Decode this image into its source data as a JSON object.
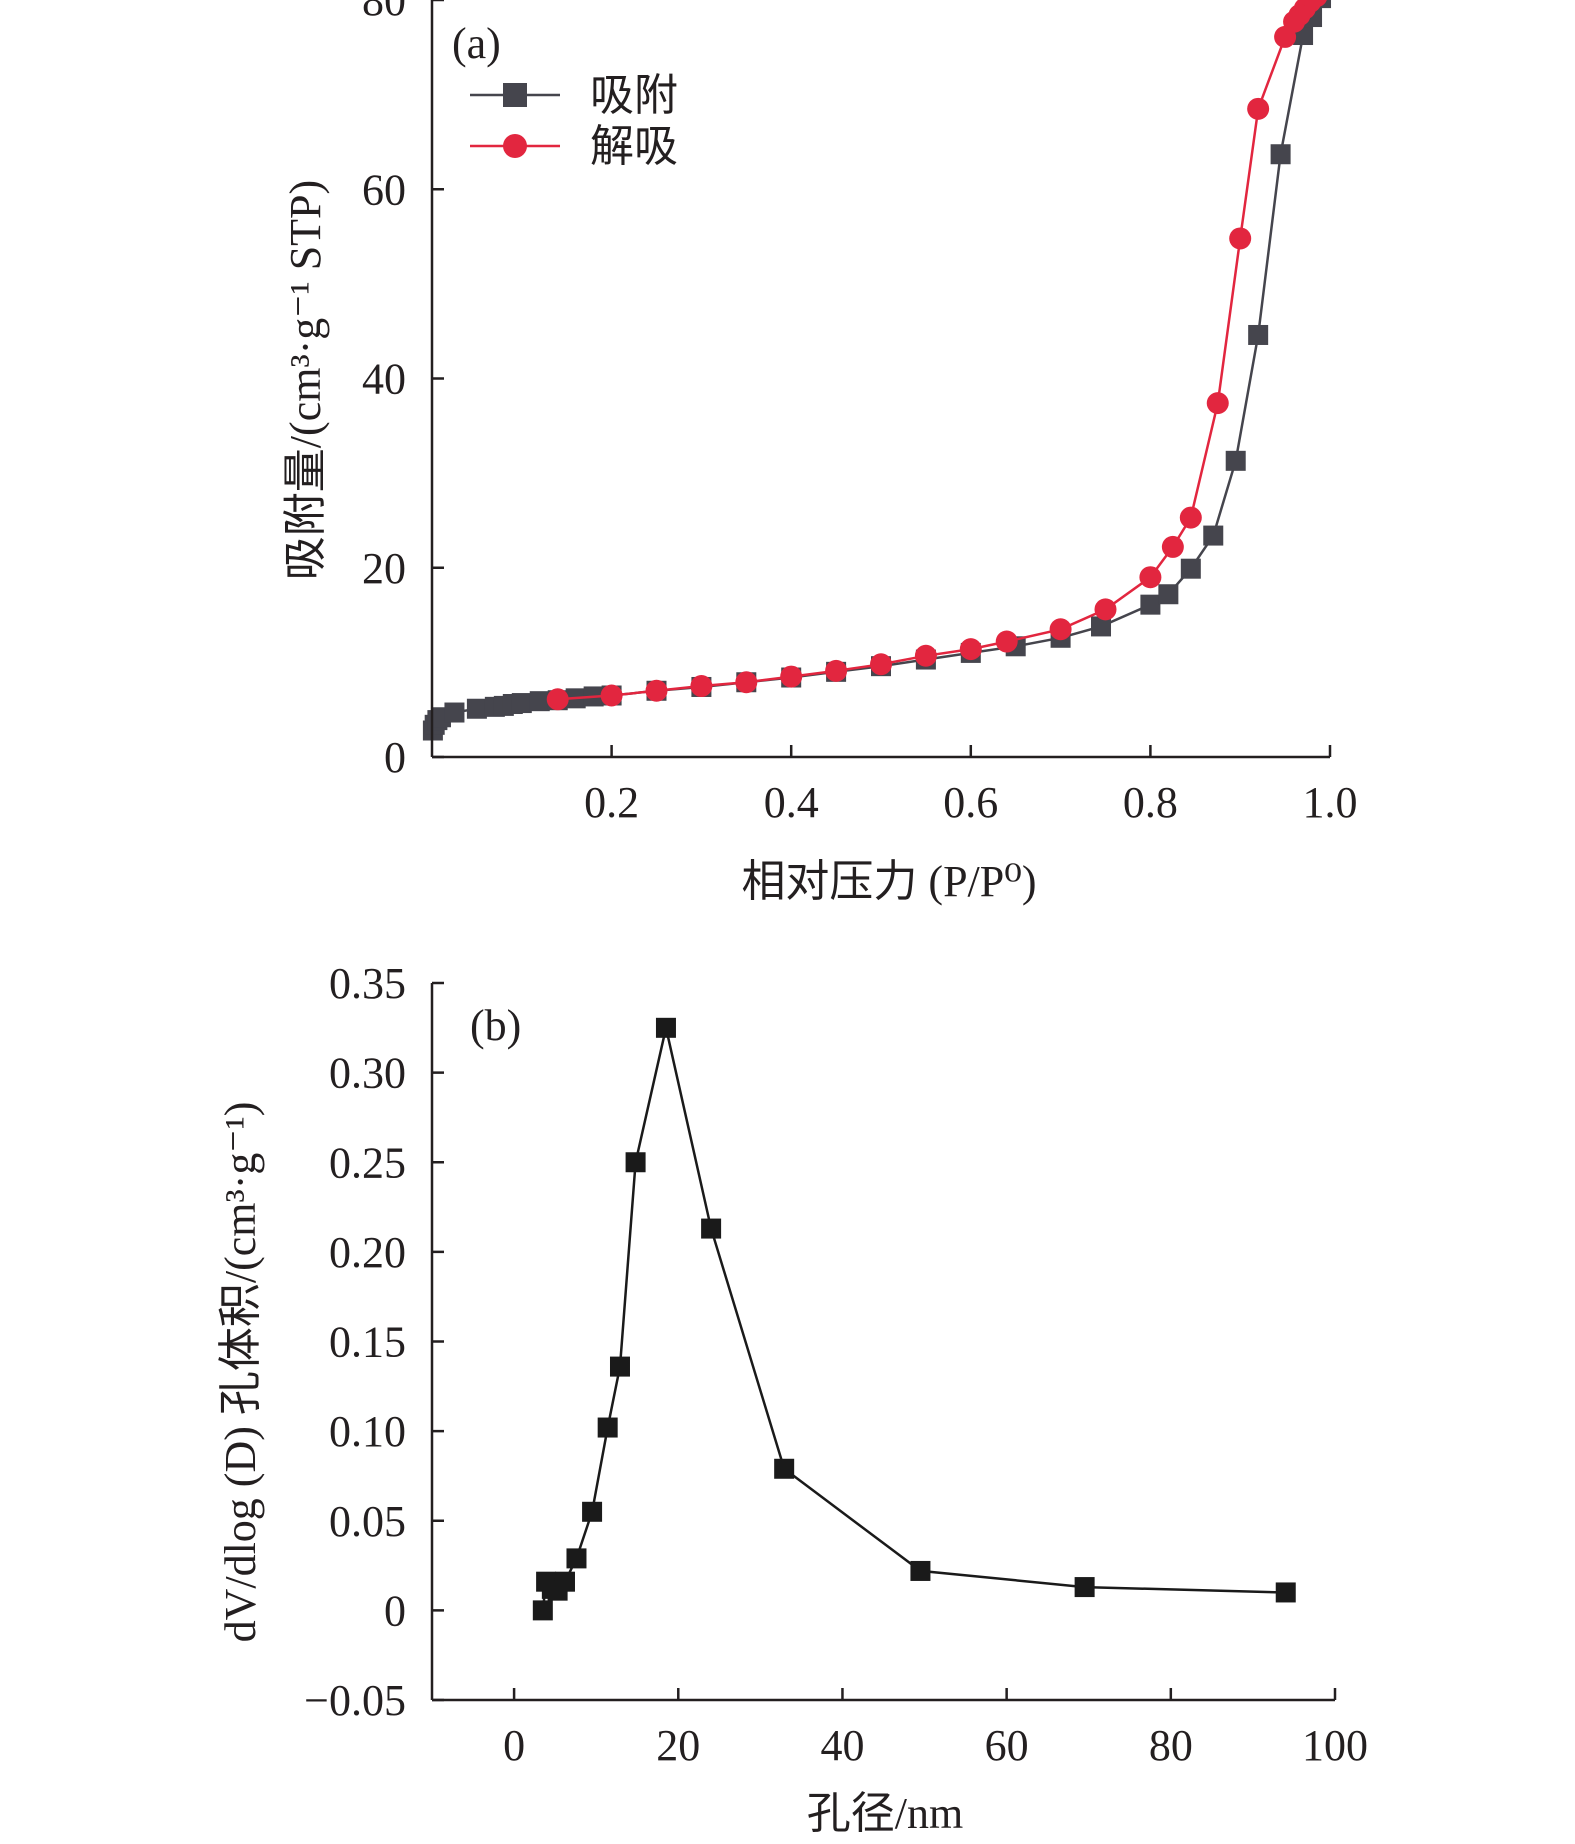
{
  "colors": {
    "adsorption": "#45454d",
    "desorption": "#e2263f",
    "psd": "#1a1a1a",
    "axis": "#231f20"
  },
  "chart_data": [
    {
      "type": "line",
      "panel_label": "(a)",
      "xlabel": "相对压力 (P/P⁰)",
      "ylabel": "吸附量/(cm³·g⁻¹ STP)",
      "xlim": [
        0,
        1.0
      ],
      "ylim": [
        0,
        80
      ],
      "xticks": [
        0.2,
        0.4,
        0.6,
        0.8,
        1.0
      ],
      "xtick_labels": [
        "0.2",
        "0.4",
        "0.6",
        "0.8",
        "1.0"
      ],
      "yticks": [
        0,
        20,
        40,
        60,
        80
      ],
      "ytick_labels": [
        "0",
        "20",
        "40",
        "60",
        "80"
      ],
      "legend_position": "top-left",
      "series": [
        {
          "name": "吸附",
          "marker": "square",
          "color": "#45454d",
          "x": [
            0.001,
            0.003,
            0.006,
            0.01,
            0.025,
            0.05,
            0.07,
            0.08,
            0.09,
            0.1,
            0.12,
            0.14,
            0.16,
            0.18,
            0.2,
            0.25,
            0.3,
            0.35,
            0.4,
            0.45,
            0.5,
            0.55,
            0.6,
            0.65,
            0.7,
            0.745,
            0.8,
            0.82,
            0.845,
            0.87,
            0.895,
            0.92,
            0.945,
            0.97,
            0.98,
            0.99
          ],
          "y": [
            2.8,
            3.4,
            3.9,
            4.2,
            4.7,
            5.1,
            5.3,
            5.4,
            5.6,
            5.7,
            5.9,
            6.0,
            6.2,
            6.4,
            6.5,
            7.0,
            7.4,
            7.9,
            8.4,
            9.0,
            9.6,
            10.3,
            11.0,
            11.7,
            12.6,
            13.8,
            16.1,
            17.2,
            19.9,
            23.4,
            31.3,
            44.6,
            63.7,
            76.3,
            78.2,
            80.2
          ]
        },
        {
          "name": "解吸",
          "marker": "circle",
          "color": "#e2263f",
          "x": [
            0.99,
            0.985,
            0.978,
            0.972,
            0.966,
            0.96,
            0.95,
            0.92,
            0.9,
            0.875,
            0.845,
            0.825,
            0.8,
            0.75,
            0.7,
            0.64,
            0.6,
            0.55,
            0.5,
            0.45,
            0.4,
            0.35,
            0.3,
            0.25,
            0.2,
            0.14
          ],
          "y": [
            81.0,
            80.4,
            79.8,
            79.1,
            78.4,
            77.7,
            76.1,
            68.5,
            54.8,
            37.4,
            25.3,
            22.2,
            19.0,
            15.6,
            13.5,
            12.2,
            11.4,
            10.7,
            9.8,
            9.1,
            8.5,
            7.9,
            7.5,
            7.0,
            6.5,
            6.1
          ]
        }
      ]
    },
    {
      "type": "line",
      "panel_label": "(b)",
      "xlabel": "孔径/nm",
      "ylabel": "dV/dlog (D) 孔体积/(cm³·g⁻¹)",
      "xlim": [
        -10,
        100
      ],
      "ylim": [
        -0.05,
        0.35
      ],
      "xticks": [
        0,
        20,
        40,
        60,
        80,
        100
      ],
      "xtick_labels": [
        "0",
        "20",
        "40",
        "60",
        "80",
        "100"
      ],
      "yticks": [
        -0.05,
        0,
        0.05,
        0.1,
        0.15,
        0.2,
        0.25,
        0.3,
        0.35
      ],
      "ytick_labels": [
        "−0.05",
        "0",
        "0.05",
        "0.10",
        "0.15",
        "0.20",
        "0.25",
        "0.30",
        "0.35"
      ],
      "series": [
        {
          "marker": "square",
          "color": "#1a1a1a",
          "x": [
            3.5,
            3.9,
            4.6,
            5.3,
            6.2,
            7.6,
            9.5,
            11.4,
            12.9,
            14.8,
            18.5,
            24.0,
            32.9,
            49.5,
            69.5,
            94.0
          ],
          "y": [
            0.0,
            0.016,
            0.012,
            0.011,
            0.016,
            0.029,
            0.055,
            0.102,
            0.136,
            0.25,
            0.325,
            0.213,
            0.079,
            0.022,
            0.013,
            0.01
          ]
        }
      ]
    }
  ]
}
